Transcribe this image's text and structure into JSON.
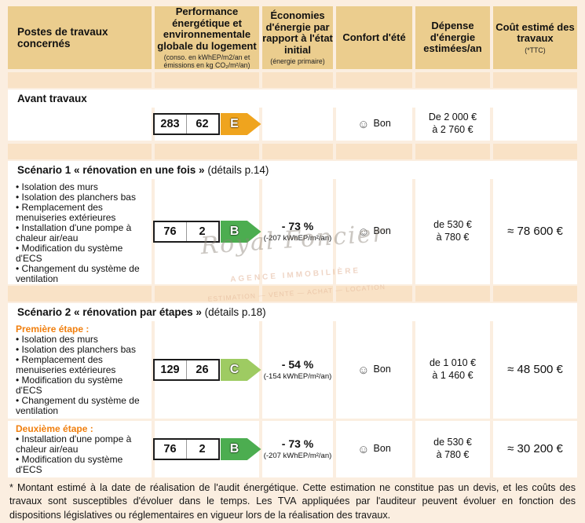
{
  "icons": {
    "smiley": "☺"
  },
  "table": {
    "columns": [
      {
        "label": "Postes de travaux concernés",
        "sub": ""
      },
      {
        "label": "Performance énergétique et environnementale globale du logement",
        "sub": "(conso. en kWhEP/m2/an et émissions en kg CO₂/m²/an)"
      },
      {
        "label": "Économies d'énergie par rapport à l'état initial",
        "sub": "(énergie primaire)"
      },
      {
        "label": "Confort d'été",
        "sub": ""
      },
      {
        "label": "Dépense d'énergie estimées/an",
        "sub": ""
      },
      {
        "label": "Coût estimé des travaux",
        "sub": "(*TTC)"
      }
    ],
    "avant": {
      "title": "Avant travaux",
      "badge": {
        "conso": "283",
        "emissions": "62",
        "letter": "E",
        "color": "#EFA41E"
      },
      "confort": "Bon",
      "depense": [
        "De 2 000 €",
        "à 2 760 €"
      ]
    },
    "scenario1": {
      "title_bold": "Scénario 1 « rénovation en une fois »",
      "title_rest": " (détails p.14)",
      "works": [
        "• Isolation des murs",
        "• Isolation des planchers bas",
        "• Remplacement des menuiseries extérieures",
        "• Installation d'une pompe à chaleur air/eau",
        "• Modification du système d'ECS",
        "• Changement du système de ventilation"
      ],
      "badge": {
        "conso": "76",
        "emissions": "2",
        "letter": "B",
        "color": "#4CAD50"
      },
      "eco_pct": "- 73 %",
      "eco_detail": "(-207 kWhEP/m²/an)",
      "confort": "Bon",
      "depense": [
        "de 530 €",
        "à 780 €"
      ],
      "cout": "≈ 78 600 €"
    },
    "scenario2": {
      "title_bold": "Scénario 2 « rénovation par étapes »",
      "title_rest": " (détails p.18)",
      "etape1": {
        "label": "Première étape :",
        "works": [
          "• Isolation des murs",
          "• Isolation des planchers bas",
          "• Remplacement des menuiseries extérieures",
          "• Modification du système d'ECS",
          "• Changement du système de ventilation"
        ],
        "badge": {
          "conso": "129",
          "emissions": "26",
          "letter": "C",
          "color": "#9ECB62"
        },
        "eco_pct": "- 54 %",
        "eco_detail": "(-154 kWhEP/m²/an)",
        "confort": "Bon",
        "depense": [
          "de 1 010 €",
          "à 1 460 €"
        ],
        "cout": "≈ 48 500 €"
      },
      "etape2": {
        "label": "Deuxième étape :",
        "works": [
          "• Installation d'une pompe à chaleur air/eau",
          "• Modification du système d'ECS"
        ],
        "badge": {
          "conso": "76",
          "emissions": "2",
          "letter": "B",
          "color": "#4CAD50"
        },
        "eco_pct": "- 73 %",
        "eco_detail": "(-207 kWhEP/m²/an)",
        "confort": "Bon",
        "depense": [
          "de 530 €",
          "à 780 €"
        ],
        "cout": "≈ 30 200 €"
      }
    }
  },
  "watermark": {
    "name": "Royal Foncier",
    "tagline": "AGENCE IMMOBILIÈRE",
    "contact": "ESTIMATION — VENTE — ACHAT — LOCATION"
  },
  "footer": {
    "note": "* Montant estimé à la date de réalisation de l'audit énergétique. Cette estimation ne constitue pas un devis, et les coûts des travaux sont susceptibles d'évoluer dans le temps. Les TVA appliquées par l'auditeur peuvent évoluer en fonction des dispositions législatives ou réglementaires en vigueur lors de la réalisation des travaux."
  }
}
